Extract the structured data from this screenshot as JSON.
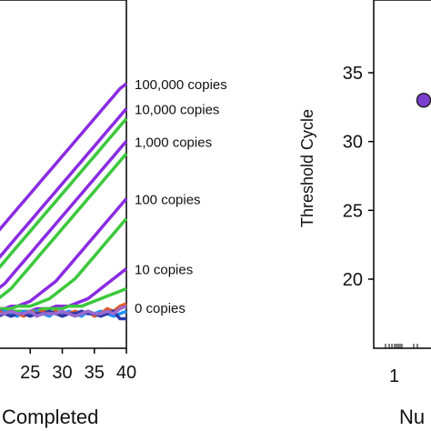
{
  "chart_data": [
    {
      "type": "line",
      "xlabel": "Completed",
      "x_ticks": [
        25,
        30,
        35,
        40
      ],
      "xlim": [
        20,
        40
      ],
      "ylim": [
        0,
        100
      ],
      "series": [
        {
          "name": "100,000 copies",
          "color": "#8a2be2",
          "x": [
            20,
            21,
            22,
            23,
            24,
            25,
            26,
            27,
            28,
            29,
            30,
            31,
            32,
            33,
            34,
            35,
            36,
            37,
            38,
            39,
            40
          ],
          "values": [
            33,
            36,
            39,
            42,
            45,
            48,
            51,
            54,
            57,
            60,
            63,
            66,
            69,
            72,
            75,
            78,
            81,
            84,
            87,
            90,
            92
          ]
        },
        {
          "name": "10,000 copies",
          "color": "#8a2be2",
          "x": [
            20,
            21,
            22,
            23,
            24,
            25,
            26,
            27,
            28,
            29,
            30,
            31,
            32,
            33,
            34,
            35,
            36,
            37,
            38,
            39,
            40
          ],
          "values": [
            22,
            25,
            28,
            31,
            34,
            37,
            40,
            43,
            46,
            49,
            52,
            55,
            58,
            61,
            64,
            67,
            70,
            73,
            76,
            79,
            82
          ]
        },
        {
          "name": "",
          "color": "#3cc83c",
          "x": [
            20,
            21,
            22,
            23,
            24,
            25,
            26,
            27,
            28,
            29,
            30,
            31,
            32,
            33,
            34,
            35,
            36,
            37,
            38,
            39,
            40
          ],
          "values": [
            18,
            21,
            24,
            27,
            30,
            33,
            36,
            39,
            42,
            45,
            48,
            51,
            54,
            57,
            60,
            63,
            66,
            69,
            72,
            75,
            78
          ]
        },
        {
          "name": "1,000 copies",
          "color": "#8a2be2",
          "x": [
            20,
            21,
            22,
            23,
            24,
            25,
            26,
            27,
            28,
            29,
            30,
            31,
            32,
            33,
            34,
            35,
            36,
            37,
            38,
            39,
            40
          ],
          "values": [
            10,
            12,
            15,
            18,
            21,
            24,
            27,
            30,
            33,
            36,
            39,
            42,
            45,
            48,
            51,
            54,
            57,
            60,
            63,
            66,
            69
          ]
        },
        {
          "name": "",
          "color": "#3cc83c",
          "x": [
            20,
            21,
            22,
            23,
            24,
            25,
            26,
            27,
            28,
            29,
            30,
            31,
            32,
            33,
            34,
            35,
            36,
            37,
            38,
            39,
            40
          ],
          "values": [
            6,
            8,
            10,
            13,
            16,
            19,
            22,
            25,
            28,
            31,
            34,
            37,
            40,
            43,
            46,
            49,
            52,
            55,
            58,
            61,
            64
          ]
        },
        {
          "name": "100 copies",
          "color": "#8a2be2",
          "x": [
            20,
            21,
            22,
            23,
            24,
            25,
            26,
            27,
            28,
            29,
            30,
            31,
            32,
            33,
            34,
            35,
            36,
            37,
            38,
            39,
            40
          ],
          "values": [
            2,
            2,
            3,
            3,
            4,
            5,
            7,
            9,
            11,
            13,
            16,
            19,
            22,
            25,
            28,
            31,
            34,
            37,
            40,
            43,
            46
          ]
        },
        {
          "name": "",
          "color": "#3cc83c",
          "x": [
            20,
            21,
            22,
            23,
            24,
            25,
            26,
            27,
            28,
            29,
            30,
            31,
            32,
            33,
            34,
            35,
            36,
            37,
            38,
            39,
            40
          ],
          "values": [
            2,
            2,
            2,
            3,
            3,
            3,
            4,
            5,
            6,
            8,
            10,
            12,
            14,
            17,
            20,
            23,
            26,
            29,
            32,
            35,
            38
          ]
        },
        {
          "name": "10 copies",
          "color": "#8a2be2",
          "x": [
            20,
            21,
            22,
            23,
            24,
            25,
            26,
            27,
            28,
            29,
            30,
            31,
            32,
            33,
            34,
            35,
            36,
            37,
            38,
            39,
            40
          ],
          "values": [
            1,
            1,
            1,
            1,
            1,
            1,
            2,
            2,
            2,
            3,
            3,
            3,
            4,
            5,
            6,
            8,
            10,
            12,
            14,
            16,
            18
          ]
        },
        {
          "name": "",
          "color": "#3cc83c",
          "x": [
            20,
            21,
            22,
            23,
            24,
            25,
            26,
            27,
            28,
            29,
            30,
            31,
            32,
            33,
            34,
            35,
            36,
            37,
            38,
            39,
            40
          ],
          "values": [
            0,
            1,
            1,
            1,
            1,
            1,
            1,
            2,
            2,
            2,
            2,
            3,
            3,
            3,
            4,
            5,
            6,
            7,
            8,
            9,
            10
          ]
        },
        {
          "name": "0 copies",
          "color": "#1e90ff",
          "x": [
            20,
            21,
            22,
            23,
            24,
            25,
            26,
            27,
            28,
            29,
            30,
            31,
            32,
            33,
            34,
            35,
            36,
            37,
            38,
            39,
            40
          ],
          "values": [
            0,
            1,
            0,
            -1,
            1,
            0,
            1,
            0,
            -1,
            1,
            0,
            1,
            0,
            -1,
            1,
            0,
            1,
            0,
            -1,
            0,
            1
          ]
        },
        {
          "name": "",
          "color": "#e05a2a",
          "x": [
            20,
            21,
            22,
            23,
            24,
            25,
            26,
            27,
            28,
            29,
            30,
            31,
            32,
            33,
            34,
            35,
            36,
            37,
            38,
            39,
            40
          ],
          "values": [
            1,
            0,
            1,
            0,
            -1,
            1,
            0,
            1,
            0,
            1,
            -1,
            0,
            1,
            0,
            1,
            -1,
            0,
            2,
            1,
            3,
            4
          ]
        },
        {
          "name": "",
          "color": "#2b3aa8",
          "x": [
            20,
            21,
            22,
            23,
            24,
            25,
            26,
            27,
            28,
            29,
            30,
            31,
            32,
            33,
            34,
            35,
            36,
            37,
            38,
            39,
            40
          ],
          "values": [
            -1,
            0,
            -1,
            0,
            0,
            -1,
            0,
            0,
            1,
            0,
            -1,
            0,
            0,
            1,
            0,
            0,
            -1,
            0,
            1,
            -2,
            -2
          ]
        },
        {
          "name": "",
          "color": "#9a6ad0",
          "x": [
            20,
            21,
            22,
            23,
            24,
            25,
            26,
            27,
            28,
            29,
            30,
            31,
            32,
            33,
            34,
            35,
            36,
            37,
            38,
            39,
            40
          ],
          "values": [
            0,
            0,
            1,
            0,
            0,
            1,
            -1,
            0,
            0,
            0,
            1,
            0,
            -1,
            0,
            1,
            0,
            0,
            1,
            0,
            2,
            3
          ]
        }
      ],
      "curve_labels": [
        "100,000 copies",
        "10,000 copies",
        "1,000 copies",
        "100 copies",
        "10 copies",
        "0 copies"
      ]
    },
    {
      "type": "scatter",
      "ylabel": "Threshold Cycle",
      "xlabel": "Nu",
      "y_ticks": [
        20,
        25,
        30,
        35
      ],
      "ylim": [
        15,
        40
      ],
      "x_tick_label": "1",
      "points": [
        {
          "y": 33,
          "color": "#7b3fd0"
        }
      ]
    }
  ]
}
